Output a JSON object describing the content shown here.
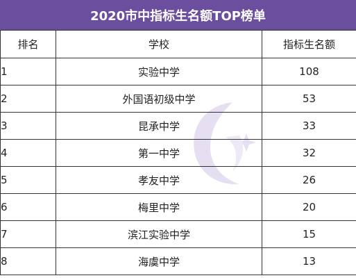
{
  "title": "2020市中指标生名额TOP榜单",
  "columns": {
    "rank": "排名",
    "school": "学校",
    "quota": "指标生名额"
  },
  "rows": [
    {
      "rank": "1",
      "school": "实验中学",
      "quota": "108"
    },
    {
      "rank": "2",
      "school": "外国语初级中学",
      "quota": "53"
    },
    {
      "rank": "3",
      "school": "昆承中学",
      "quota": "33"
    },
    {
      "rank": "4",
      "school": "第一中学",
      "quota": "32"
    },
    {
      "rank": "5",
      "school": "孝友中学",
      "quota": "26"
    },
    {
      "rank": "6",
      "school": "梅里中学",
      "quota": "20"
    },
    {
      "rank": "7",
      "school": "滨江实验中学",
      "quota": "15"
    },
    {
      "rank": "8",
      "school": "海虞中学",
      "quota": "13"
    }
  ],
  "colors": {
    "title_bg": "#6b4f9e",
    "title_text": "#ffffff",
    "border": "#333333",
    "watermark": "#b8a6d9"
  }
}
